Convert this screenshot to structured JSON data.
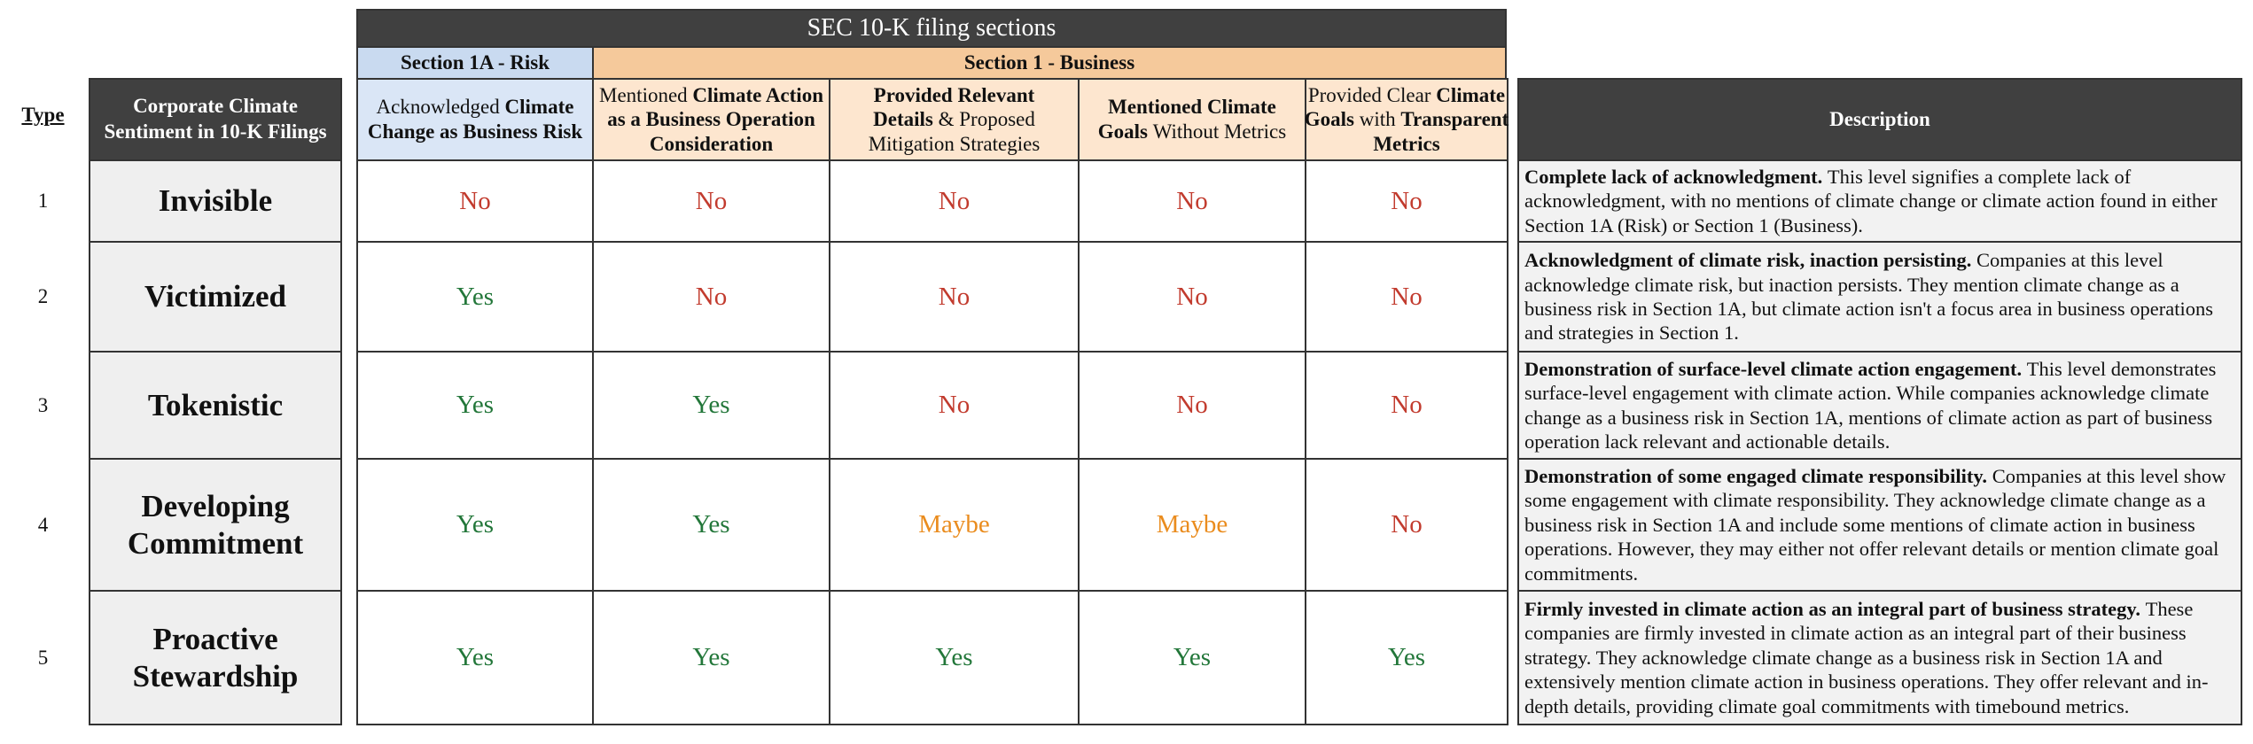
{
  "header": {
    "title": "SEC 10-K filing sections",
    "section_risk": "Section 1A - Risk",
    "section_business": "Section 1 - Business"
  },
  "columns": {
    "type": "Type",
    "sentiment": "Corporate Climate Sentiment in 10-K Filings",
    "description": "Description",
    "criteria": [
      [
        {
          "text": "Acknowledged",
          "bold": false
        },
        {
          "text": "Climate Change as Business Risk",
          "bold": true
        }
      ],
      [
        {
          "text": "Mentioned",
          "bold": false
        },
        {
          "text": "Climate Action as a Business Operation Consideration",
          "bold": true
        }
      ],
      [
        {
          "text": "Provided Relevant Details",
          "bold": true
        },
        {
          "text": "& Proposed Mitigation Strategies",
          "bold": false
        }
      ],
      [
        {
          "text": "Mentioned Climate Goals",
          "bold": true
        },
        {
          "text": "Without Metrics",
          "bold": false
        }
      ],
      [
        {
          "text": "Provided Clear",
          "bold": false
        },
        {
          "text": "Climate Goals",
          "bold": true
        },
        {
          "text": "with",
          "bold": false
        },
        {
          "text": "Transparent Metrics",
          "bold": true
        }
      ]
    ]
  },
  "answer_colors": {
    "Yes": "#23773a",
    "No": "#c23b2e",
    "Maybe": "#ea8c1e"
  },
  "rows": [
    {
      "type": "1",
      "name": "Invisible",
      "values": [
        "No",
        "No",
        "No",
        "No",
        "No"
      ],
      "description_lead": "Complete lack of acknowledgment.",
      "description_text": "This level signifies a complete lack of acknowledgment, with no mentions of climate change or climate action found in either Section 1A (Risk) or Section 1 (Business)."
    },
    {
      "type": "2",
      "name": "Victimized",
      "values": [
        "Yes",
        "No",
        "No",
        "No",
        "No"
      ],
      "description_lead": "Acknowledgment of climate risk, inaction persisting.",
      "description_text": "Companies at this level acknowledge climate risk, but inaction persists. They mention climate change as a business risk in Section 1A, but climate action isn't a focus area in business operations and strategies in Section 1."
    },
    {
      "type": "3",
      "name": "Tokenistic",
      "values": [
        "Yes",
        "Yes",
        "No",
        "No",
        "No"
      ],
      "description_lead": "Demonstration of surface-level climate action engagement.",
      "description_text": "This level demonstrates surface-level engagement with climate action. While companies acknowledge climate change as a business risk in Section 1A, mentions of climate action as part of business operation lack relevant and actionable details."
    },
    {
      "type": "4",
      "name": "Developing Commitment",
      "values": [
        "Yes",
        "Yes",
        "Maybe",
        "Maybe",
        "No"
      ],
      "description_lead": "Demonstration of some engaged climate responsibility.",
      "description_text": "Companies at this level show some engagement with climate responsibility. They acknowledge climate change as a business risk in Section 1A and include some mentions of climate action in business operations. However, they may either not offer relevant details or mention climate goal commitments."
    },
    {
      "type": "5",
      "name": "Proactive Stewardship",
      "values": [
        "Yes",
        "Yes",
        "Yes",
        "Yes",
        "Yes"
      ],
      "description_lead": "Firmly invested in climate action as an integral part of business strategy.",
      "description_text": "These companies are firmly invested in climate action as an integral part of their business strategy. They acknowledge climate change as a business risk in Section 1A and extensively mention climate action in business operations. They offer relevant and in-depth details, providing climate goal commitments with timebound metrics."
    }
  ]
}
